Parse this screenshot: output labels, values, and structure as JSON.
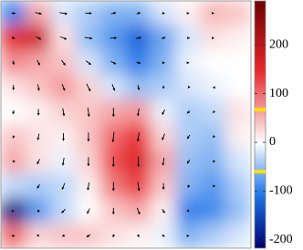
{
  "chart_data": {
    "type": "heatmap",
    "values": [
      [
        -100,
        60,
        -20,
        -40,
        -60,
        -60,
        -20,
        10,
        50,
        40
      ],
      [
        150,
        180,
        20,
        -50,
        -80,
        -120,
        -70,
        -20,
        20,
        10
      ],
      [
        80,
        60,
        40,
        -20,
        -60,
        -100,
        -60,
        -10,
        0,
        0
      ],
      [
        20,
        40,
        70,
        30,
        -20,
        -50,
        -40,
        -20,
        -10,
        0
      ],
      [
        0,
        10,
        30,
        40,
        60,
        70,
        -10,
        -40,
        -30,
        20
      ],
      [
        40,
        20,
        10,
        40,
        100,
        140,
        30,
        -40,
        -50,
        10
      ],
      [
        60,
        20,
        -10,
        30,
        120,
        160,
        60,
        -50,
        -60,
        -20
      ],
      [
        -30,
        -40,
        -30,
        10,
        90,
        130,
        40,
        -60,
        -80,
        -40
      ],
      [
        -200,
        -80,
        -30,
        0,
        40,
        60,
        10,
        -100,
        -90,
        -50
      ],
      [
        100,
        30,
        40,
        40,
        20,
        10,
        -10,
        -60,
        -40,
        -20
      ]
    ],
    "u": [
      [
        0.3,
        0.5,
        0.6,
        0.5,
        0.4,
        0.3,
        0.2,
        0.1,
        0.1,
        0
      ],
      [
        0.2,
        0.4,
        0.5,
        0.6,
        0.5,
        0.4,
        0.3,
        0.2,
        0.1,
        0
      ],
      [
        0.1,
        0.2,
        0.3,
        0.4,
        0.4,
        0.3,
        0.2,
        0.1,
        0,
        0
      ],
      [
        0,
        0.1,
        0.2,
        0.3,
        0.2,
        0.1,
        0,
        -0.1,
        -0.1,
        0
      ],
      [
        -0.1,
        0,
        0.1,
        0.1,
        0,
        -0.1,
        -0.2,
        -0.2,
        -0.1,
        0
      ],
      [
        -0.1,
        -0.1,
        0,
        0,
        -0.1,
        -0.1,
        -0.2,
        -0.2,
        -0.1,
        0
      ],
      [
        -0.1,
        -0.2,
        -0.1,
        0,
        0,
        0,
        -0.1,
        -0.2,
        -0.1,
        0
      ],
      [
        0,
        -0.2,
        -0.2,
        -0.1,
        0,
        0.1,
        0,
        -0.1,
        -0.1,
        0
      ],
      [
        0.1,
        -0.1,
        -0.3,
        -0.2,
        0,
        0.2,
        0.2,
        0.1,
        0,
        0
      ],
      [
        0.2,
        0.1,
        -0.2,
        -0.3,
        -0.1,
        0.1,
        0.2,
        0.1,
        0,
        0
      ]
    ],
    "v": [
      [
        0,
        0.1,
        0.1,
        0,
        -0.1,
        -0.1,
        0,
        0,
        0,
        0
      ],
      [
        0.1,
        0.2,
        0.2,
        0.1,
        0,
        -0.1,
        -0.1,
        0,
        0,
        0
      ],
      [
        0.3,
        0.4,
        0.4,
        0.3,
        0.2,
        0.1,
        0,
        0,
        0,
        0
      ],
      [
        0.4,
        0.5,
        0.5,
        0.6,
        0.5,
        0.4,
        0.2,
        0.1,
        0,
        0
      ],
      [
        0.3,
        0.5,
        0.6,
        0.7,
        0.7,
        0.6,
        0.4,
        0.2,
        0.1,
        0
      ],
      [
        0.2,
        0.5,
        0.6,
        0.7,
        0.8,
        0.7,
        0.5,
        0.3,
        0.1,
        0
      ],
      [
        0.1,
        0.4,
        0.6,
        0.7,
        0.8,
        0.8,
        0.6,
        0.3,
        0.1,
        0
      ],
      [
        0,
        0.3,
        0.5,
        0.6,
        0.7,
        0.7,
        0.5,
        0.2,
        0.1,
        0
      ],
      [
        0,
        0.2,
        0.3,
        0.4,
        0.5,
        0.5,
        0.3,
        0.1,
        0,
        0
      ],
      [
        0,
        0.1,
        0.1,
        0.2,
        0.2,
        0.2,
        0.1,
        0,
        0,
        0
      ]
    ],
    "clim": [
      -217,
      290
    ],
    "cticks": [
      -200,
      -100,
      0,
      100,
      200
    ],
    "colormap": [
      "#000070",
      "#1c74e8",
      "#ffffff",
      "#e8282c",
      "#700000"
    ],
    "thresholds": [
      67,
      -60
    ],
    "threshold_color": "#ffe000",
    "arrow_color": "#000000"
  }
}
